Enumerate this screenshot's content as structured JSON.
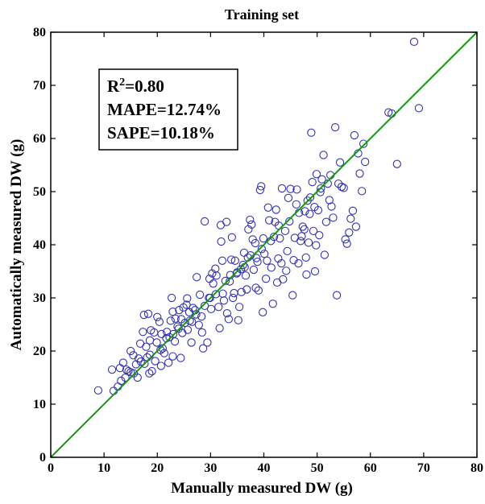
{
  "chart_data": {
    "type": "scatter",
    "title": "Training set",
    "xlabel": "Manually measured DW (g)",
    "ylabel": "Automatically measured DW (g)",
    "xlim": [
      0,
      80
    ],
    "ylim": [
      0,
      80
    ],
    "xticks": [
      0,
      10,
      20,
      30,
      40,
      50,
      60,
      70,
      80
    ],
    "yticks": [
      0,
      10,
      20,
      30,
      40,
      50,
      60,
      70,
      80
    ],
    "grid": false,
    "marker_color": "#3333aa",
    "line_color": "#119911",
    "fit_line": {
      "x": [
        0,
        80
      ],
      "y": [
        0,
        80
      ]
    },
    "annotation": {
      "r2_prefix": "R",
      "r2_sup": "2",
      "r2_value": "=0.80",
      "mape": "MAPE=12.74%",
      "sape": "SAPE=10.18%"
    },
    "points": [
      [
        8.9,
        12.6
      ],
      [
        11.5,
        16.5
      ],
      [
        11.8,
        12.5
      ],
      [
        12.6,
        13.3
      ],
      [
        13.0,
        16.8
      ],
      [
        13.2,
        14.4
      ],
      [
        13.6,
        17.8
      ],
      [
        14.0,
        15.0
      ],
      [
        14.2,
        16.5
      ],
      [
        14.6,
        16.2
      ],
      [
        15.0,
        16.0
      ],
      [
        15.0,
        20.0
      ],
      [
        15.5,
        19.2
      ],
      [
        16.0,
        17.5
      ],
      [
        16.3,
        15.0
      ],
      [
        16.5,
        18.6
      ],
      [
        16.8,
        21.4
      ],
      [
        17.3,
        23.6
      ],
      [
        17.5,
        26.8
      ],
      [
        17.6,
        17.6
      ],
      [
        17.9,
        20.8
      ],
      [
        18.3,
        27.0
      ],
      [
        18.5,
        15.8
      ],
      [
        18.6,
        22.0
      ],
      [
        18.6,
        19.3
      ],
      [
        18.8,
        23.9
      ],
      [
        19.0,
        16.2
      ],
      [
        19.4,
        23.5
      ],
      [
        19.6,
        18.1
      ],
      [
        19.9,
        21.6
      ],
      [
        20.0,
        26.4
      ],
      [
        20.4,
        25.5
      ],
      [
        20.7,
        17.2
      ],
      [
        20.8,
        23.2
      ],
      [
        21.0,
        20.5
      ],
      [
        21.3,
        19.6
      ],
      [
        21.7,
        22.4
      ],
      [
        21.8,
        23.6
      ],
      [
        22.1,
        17.8
      ],
      [
        22.5,
        25.7
      ],
      [
        22.9,
        27.4
      ],
      [
        22.7,
        30.0
      ],
      [
        22.9,
        19.0
      ],
      [
        23.0,
        23.2
      ],
      [
        23.3,
        21.8
      ],
      [
        23.4,
        26.1
      ],
      [
        23.8,
        24.6
      ],
      [
        24.1,
        27.7
      ],
      [
        24.4,
        18.7
      ],
      [
        24.5,
        26.0
      ],
      [
        24.7,
        23.4
      ],
      [
        24.9,
        28.2
      ],
      [
        25.2,
        25.3
      ],
      [
        25.5,
        28.7
      ],
      [
        25.6,
        29.9
      ],
      [
        25.7,
        24.0
      ],
      [
        26.0,
        27.3
      ],
      [
        26.4,
        21.6
      ],
      [
        26.5,
        25.5
      ],
      [
        26.7,
        28.1
      ],
      [
        27.1,
        27.7
      ],
      [
        27.4,
        33.9
      ],
      [
        27.8,
        24.9
      ],
      [
        28.0,
        30.6
      ],
      [
        28.3,
        26.5
      ],
      [
        28.4,
        23.5
      ],
      [
        28.6,
        20.5
      ],
      [
        28.9,
        44.4
      ],
      [
        29.4,
        21.6
      ],
      [
        29.7,
        30.0
      ],
      [
        29.8,
        33.6
      ],
      [
        30.1,
        27.9
      ],
      [
        30.5,
        32.7
      ],
      [
        30.9,
        35.5
      ],
      [
        31.1,
        34.2
      ],
      [
        31.5,
        28.3
      ],
      [
        31.7,
        24.3
      ],
      [
        31.9,
        43.7
      ],
      [
        32.0,
        40.6
      ],
      [
        32.2,
        37.0
      ],
      [
        32.3,
        30.8
      ],
      [
        32.5,
        29.5
      ],
      [
        32.8,
        33.2
      ],
      [
        33.0,
        44.3
      ],
      [
        33.1,
        27.1
      ],
      [
        33.4,
        26.0
      ],
      [
        33.7,
        34.3
      ],
      [
        33.9,
        37.2
      ],
      [
        34.0,
        41.4
      ],
      [
        34.2,
        30.0
      ],
      [
        34.4,
        30.9
      ],
      [
        34.6,
        37.0
      ],
      [
        34.9,
        34.6
      ],
      [
        35.2,
        25.8
      ],
      [
        35.4,
        28.3
      ],
      [
        35.7,
        35.4
      ],
      [
        35.8,
        31.1
      ],
      [
        36.1,
        36.2
      ],
      [
        36.3,
        38.5
      ],
      [
        36.6,
        34.2
      ],
      [
        36.8,
        31.6
      ],
      [
        37.0,
        37.6
      ],
      [
        37.1,
        42.9
      ],
      [
        37.4,
        44.7
      ],
      [
        37.5,
        38.0
      ],
      [
        37.7,
        43.8
      ],
      [
        37.9,
        41.0
      ],
      [
        38.1,
        35.3
      ],
      [
        38.4,
        40.3
      ],
      [
        38.5,
        31.9
      ],
      [
        38.8,
        36.8
      ],
      [
        39.0,
        31.4
      ],
      [
        39.3,
        50.3
      ],
      [
        39.5,
        51.0
      ],
      [
        39.8,
        27.3
      ],
      [
        39.9,
        41.2
      ],
      [
        40.1,
        38.3
      ],
      [
        40.4,
        33.6
      ],
      [
        40.6,
        37.0
      ],
      [
        40.8,
        47.0
      ],
      [
        41.0,
        44.6
      ],
      [
        41.3,
        40.7
      ],
      [
        41.4,
        35.7
      ],
      [
        41.7,
        28.9
      ],
      [
        42.1,
        44.3
      ],
      [
        42.3,
        46.6
      ],
      [
        42.5,
        32.9
      ],
      [
        42.7,
        37.4
      ],
      [
        43.0,
        41.2
      ],
      [
        43.3,
        36.5
      ],
      [
        43.4,
        50.6
      ],
      [
        43.6,
        33.5
      ],
      [
        44.0,
        42.6
      ],
      [
        44.2,
        35.1
      ],
      [
        44.4,
        38.8
      ],
      [
        44.6,
        48.8
      ],
      [
        45.0,
        50.5
      ],
      [
        45.4,
        30.5
      ],
      [
        45.6,
        37.1
      ],
      [
        45.8,
        41.3
      ],
      [
        46.1,
        47.6
      ],
      [
        46.2,
        50.4
      ],
      [
        46.5,
        36.5
      ],
      [
        46.9,
        40.7
      ],
      [
        47.1,
        41.6
      ],
      [
        47.3,
        43.4
      ],
      [
        47.6,
        42.9
      ],
      [
        47.7,
        46.3
      ],
      [
        47.9,
        37.6
      ],
      [
        48.0,
        34.4
      ],
      [
        48.2,
        48.3
      ],
      [
        48.4,
        40.4
      ],
      [
        48.6,
        45.8
      ],
      [
        48.9,
        61.1
      ],
      [
        49.1,
        51.8
      ],
      [
        49.3,
        42.6
      ],
      [
        49.5,
        47.1
      ],
      [
        49.6,
        35.0
      ],
      [
        49.8,
        39.9
      ],
      [
        49.9,
        53.3
      ],
      [
        50.2,
        46.5
      ],
      [
        50.4,
        41.8
      ],
      [
        50.7,
        50.6
      ],
      [
        50.9,
        52.3
      ],
      [
        51.2,
        56.9
      ],
      [
        51.4,
        38.1
      ],
      [
        51.7,
        44.3
      ],
      [
        52.0,
        51.5
      ],
      [
        52.3,
        48.4
      ],
      [
        52.5,
        53.1
      ],
      [
        52.7,
        47.2
      ],
      [
        53.0,
        45.1
      ],
      [
        53.4,
        62.1
      ],
      [
        53.7,
        30.5
      ],
      [
        54.0,
        51.5
      ],
      [
        54.3,
        55.5
      ],
      [
        54.6,
        50.9
      ],
      [
        55.0,
        50.7
      ],
      [
        55.3,
        41.0
      ],
      [
        55.6,
        40.2
      ],
      [
        56.0,
        42.3
      ],
      [
        56.3,
        44.9
      ],
      [
        56.7,
        46.4
      ],
      [
        57.0,
        60.6
      ],
      [
        57.3,
        43.4
      ],
      [
        57.7,
        57.2
      ],
      [
        58.0,
        53.4
      ],
      [
        58.4,
        50.1
      ],
      [
        58.7,
        59.0
      ],
      [
        59.0,
        55.6
      ],
      [
        63.4,
        64.9
      ],
      [
        64.0,
        64.7
      ],
      [
        65.0,
        55.2
      ],
      [
        68.2,
        78.2
      ],
      [
        69.1,
        65.7
      ],
      [
        38.6,
        37.5
      ],
      [
        39.6,
        39.2
      ],
      [
        41.9,
        41.5
      ],
      [
        42.8,
        43.6
      ],
      [
        44.8,
        44.4
      ],
      [
        30.3,
        34.6
      ],
      [
        31.0,
        30.7
      ],
      [
        33.6,
        33.1
      ],
      [
        35.0,
        34.8
      ],
      [
        36.4,
        35.8
      ],
      [
        26.1,
        25.7
      ],
      [
        27.3,
        26.9
      ],
      [
        24.0,
        24.2
      ],
      [
        22.3,
        22.6
      ],
      [
        20.6,
        20.2
      ],
      [
        18.1,
        18.8
      ],
      [
        15.6,
        15.8
      ],
      [
        16.9,
        18.0
      ],
      [
        28.9,
        28.5
      ],
      [
        29.9,
        30.0
      ],
      [
        46.6,
        46.0
      ],
      [
        48.7,
        48.9
      ],
      [
        50.6,
        49.9
      ]
    ]
  }
}
